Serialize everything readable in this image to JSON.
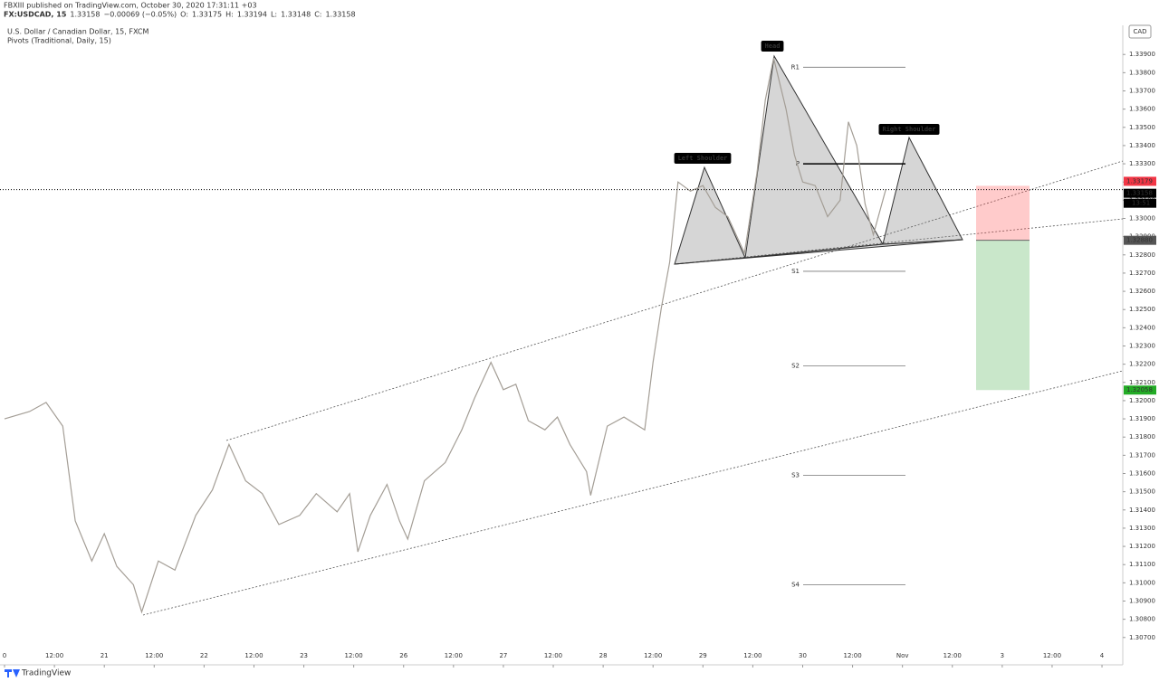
{
  "header": {
    "publisher": "FBXIII published on TradingView.com, October 30, 2020 17:31:11 +03",
    "symbol": "FX:USDCAD, 15",
    "last": "1.33158",
    "change": "−0.00069 (−0.05%)",
    "ohlc": [
      {
        "k": "O:",
        "v": "1.33175"
      },
      {
        "k": "H:",
        "v": "1.33194"
      },
      {
        "k": "L:",
        "v": "1.33148"
      },
      {
        "k": "C:",
        "v": "1.33158"
      }
    ]
  },
  "brand": "TradingView",
  "chart_data": {
    "type": "line",
    "title": "U.S. Dollar / Canadian Dollar, 15, FXCM",
    "subtitle": "Pivots (Traditional, Daily, 15)",
    "currency": "CAD",
    "xlim": [
      -1,
      269
    ],
    "xticks": [
      {
        "value": 0,
        "label": "0"
      },
      {
        "value": 12,
        "label": "12:00"
      },
      {
        "value": 24,
        "label": "21"
      },
      {
        "value": 36,
        "label": "12:00"
      },
      {
        "value": 48,
        "label": "22"
      },
      {
        "value": 60,
        "label": "12:00"
      },
      {
        "value": 72,
        "label": "23"
      },
      {
        "value": 84,
        "label": "12:00"
      },
      {
        "value": 96,
        "label": "26"
      },
      {
        "value": 108,
        "label": "12:00"
      },
      {
        "value": 120,
        "label": "27"
      },
      {
        "value": 132,
        "label": "12:00"
      },
      {
        "value": 144,
        "label": "28"
      },
      {
        "value": 156,
        "label": "12:00"
      },
      {
        "value": 168,
        "label": "29"
      },
      {
        "value": 180,
        "label": "12:00"
      },
      {
        "value": 192,
        "label": "30"
      },
      {
        "value": 204,
        "label": "12:00"
      },
      {
        "value": 216,
        "label": "Nov"
      },
      {
        "value": 228,
        "label": "12:00"
      },
      {
        "value": 240,
        "label": "3"
      },
      {
        "value": 252,
        "label": "12:00"
      },
      {
        "value": 264,
        "label": "4"
      }
    ],
    "ylim": [
      1.3055,
      1.3405
    ],
    "yticks": [
      {
        "value": 1.307,
        "label": "1.30700"
      },
      {
        "value": 1.308,
        "label": "1.30800"
      },
      {
        "value": 1.309,
        "label": "1.30900"
      },
      {
        "value": 1.31,
        "label": "1.31000"
      },
      {
        "value": 1.311,
        "label": "1.31100"
      },
      {
        "value": 1.312,
        "label": "1.31200"
      },
      {
        "value": 1.313,
        "label": "1.31300"
      },
      {
        "value": 1.314,
        "label": "1.31400"
      },
      {
        "value": 1.315,
        "label": "1.31500"
      },
      {
        "value": 1.316,
        "label": "1.31600"
      },
      {
        "value": 1.317,
        "label": "1.31700"
      },
      {
        "value": 1.318,
        "label": "1.31800"
      },
      {
        "value": 1.319,
        "label": "1.31900"
      },
      {
        "value": 1.32,
        "label": "1.32000"
      },
      {
        "value": 1.321,
        "label": "1.32100"
      },
      {
        "value": 1.322,
        "label": "1.32200"
      },
      {
        "value": 1.323,
        "label": "1.32300"
      },
      {
        "value": 1.324,
        "label": "1.32400"
      },
      {
        "value": 1.325,
        "label": "1.32500"
      },
      {
        "value": 1.326,
        "label": "1.32600"
      },
      {
        "value": 1.327,
        "label": "1.32700"
      },
      {
        "value": 1.328,
        "label": "1.32800"
      },
      {
        "value": 1.329,
        "label": "1.32900"
      },
      {
        "value": 1.33,
        "label": "1.33000"
      },
      {
        "value": 1.331,
        "label": "1.33100"
      },
      {
        "value": 1.332,
        "label": "1.33200"
      },
      {
        "value": 1.333,
        "label": "1.33300"
      },
      {
        "value": 1.334,
        "label": "1.33400"
      },
      {
        "value": 1.335,
        "label": "1.33500"
      },
      {
        "value": 1.336,
        "label": "1.33600"
      },
      {
        "value": 1.337,
        "label": "1.33700"
      },
      {
        "value": 1.338,
        "label": "1.33800"
      },
      {
        "value": 1.339,
        "label": "1.33900"
      }
    ],
    "series": [
      {
        "color": "#a49e96",
        "x": [
          0,
          6,
          10,
          14,
          17,
          21,
          24,
          27,
          31,
          33,
          37,
          41,
          46,
          50,
          54,
          58,
          62,
          66,
          71,
          75,
          80,
          83,
          85,
          88,
          92,
          95,
          97,
          101,
          106,
          110,
          113,
          117,
          120,
          123,
          126,
          130,
          133,
          136,
          140,
          141,
          145,
          149,
          154,
          156,
          158,
          160,
          162,
          165,
          168,
          171,
          174,
          178,
          181,
          183,
          185,
          188,
          190,
          192,
          195,
          198,
          201,
          203,
          205,
          207,
          209,
          212
        ],
        "values": [
          1.319,
          1.3194,
          1.3199,
          1.3186,
          1.3134,
          1.3112,
          1.3127,
          1.3109,
          1.3099,
          1.3084,
          1.3112,
          1.3107,
          1.3137,
          1.3151,
          1.3176,
          1.3156,
          1.3149,
          1.3132,
          1.3137,
          1.3149,
          1.3139,
          1.3149,
          1.3117,
          1.3137,
          1.3154,
          1.3134,
          1.3124,
          1.3156,
          1.3166,
          1.3184,
          1.3201,
          1.3221,
          1.3206,
          1.3209,
          1.3189,
          1.3184,
          1.3191,
          1.3176,
          1.3161,
          1.3148,
          1.3186,
          1.3191,
          1.3184,
          1.3221,
          1.3251,
          1.3276,
          1.332,
          1.3315,
          1.3318,
          1.3306,
          1.3301,
          1.3281,
          1.3325,
          1.3365,
          1.3388,
          1.336,
          1.3335,
          1.332,
          1.3318,
          1.3301,
          1.331,
          1.3353,
          1.334,
          1.3308,
          1.3291,
          1.3316
        ]
      }
    ],
    "pivots": [
      {
        "label": "R1",
        "value": 1.3383
      },
      {
        "label": "P",
        "value": 1.333
      },
      {
        "label": "S1",
        "value": 1.3271
      },
      {
        "label": "S2",
        "value": 1.3219
      },
      {
        "label": "S3",
        "value": 1.3159
      },
      {
        "label": "S4",
        "value": 1.3099
      }
    ],
    "annotations": [
      "Left Shoulder",
      "Head",
      "Right Shoulder"
    ],
    "position": {
      "stop": 1.33179,
      "entry": {
        "value": 1.3288,
        "label": "1.32880"
      },
      "target": 1.32058
    },
    "last_price": 1.33158,
    "countdown": "13:51"
  }
}
